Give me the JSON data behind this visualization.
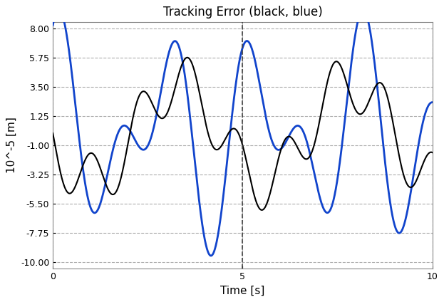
{
  "title": "Tracking Error (black, blue)",
  "xlabel": "Time [s]",
  "ylabel": "10^-5 [m]",
  "xlim": [
    0,
    10
  ],
  "ylim": [
    -10.5,
    8.5
  ],
  "yticks": [
    -10.0,
    -7.75,
    -5.5,
    -3.25,
    -1.0,
    1.25,
    3.5,
    5.75,
    8.0
  ],
  "xticks": [
    0,
    5,
    10
  ],
  "vline_x": 5,
  "plot_bg_color": "#ffffff",
  "black_color": "#000000",
  "blue_color": "#1144cc",
  "grid_color": "#999999",
  "vline_color": "#444444",
  "title_fontsize": 12,
  "label_fontsize": 11,
  "tick_fontsize": 9,
  "blue_lw": 2.0,
  "black_lw": 1.5,
  "blue_amp1": 5.0,
  "blue_freq1": 0.38,
  "blue_phase1": 1.05,
  "blue_amp2": 4.5,
  "blue_freq2": 0.62,
  "blue_phase2": 1.05,
  "black_amp1": 3.8,
  "black_freq1": 0.22,
  "black_phase1": 3.3,
  "black_amp2": 2.2,
  "black_freq2": 0.78,
  "black_phase2": 2.9
}
